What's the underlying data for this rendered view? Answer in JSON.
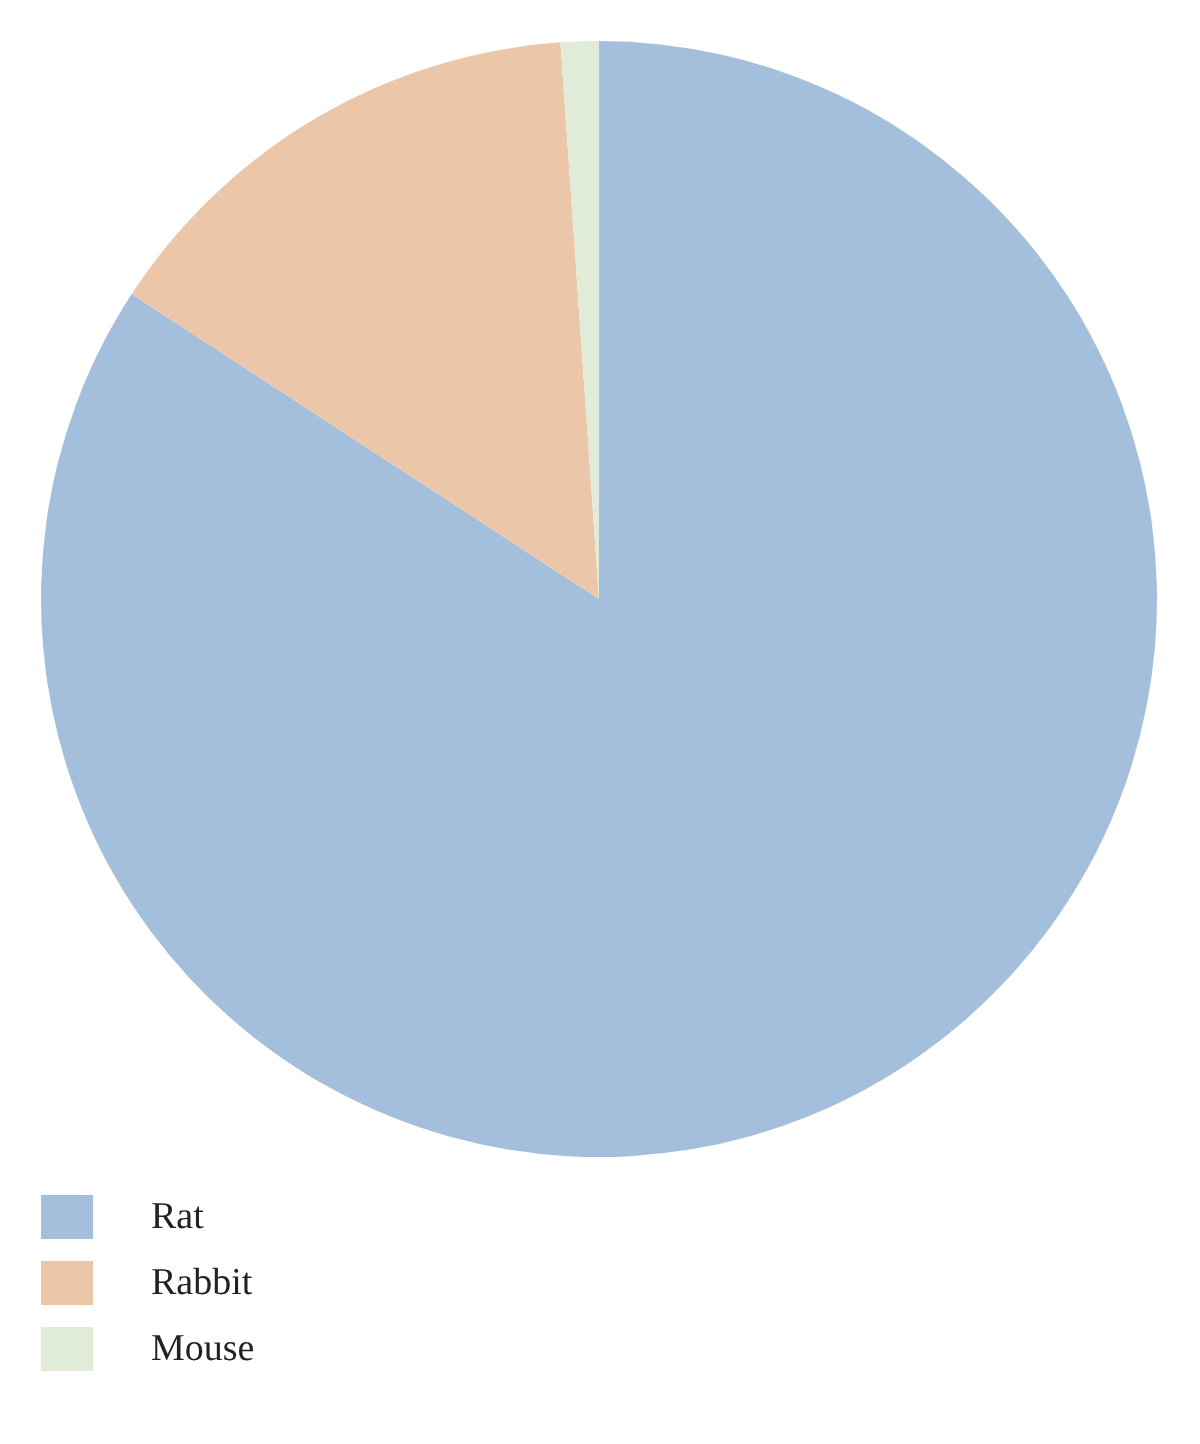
{
  "chart_data": {
    "type": "pie",
    "categories": [
      "Rat",
      "Rabbit",
      "Mouse"
    ],
    "values": [
      84.2,
      14.7,
      1.1
    ],
    "colors": [
      "#a4bfdb",
      "#ecc6a8",
      "#e0ecd8"
    ],
    "legend": "bottom left"
  }
}
